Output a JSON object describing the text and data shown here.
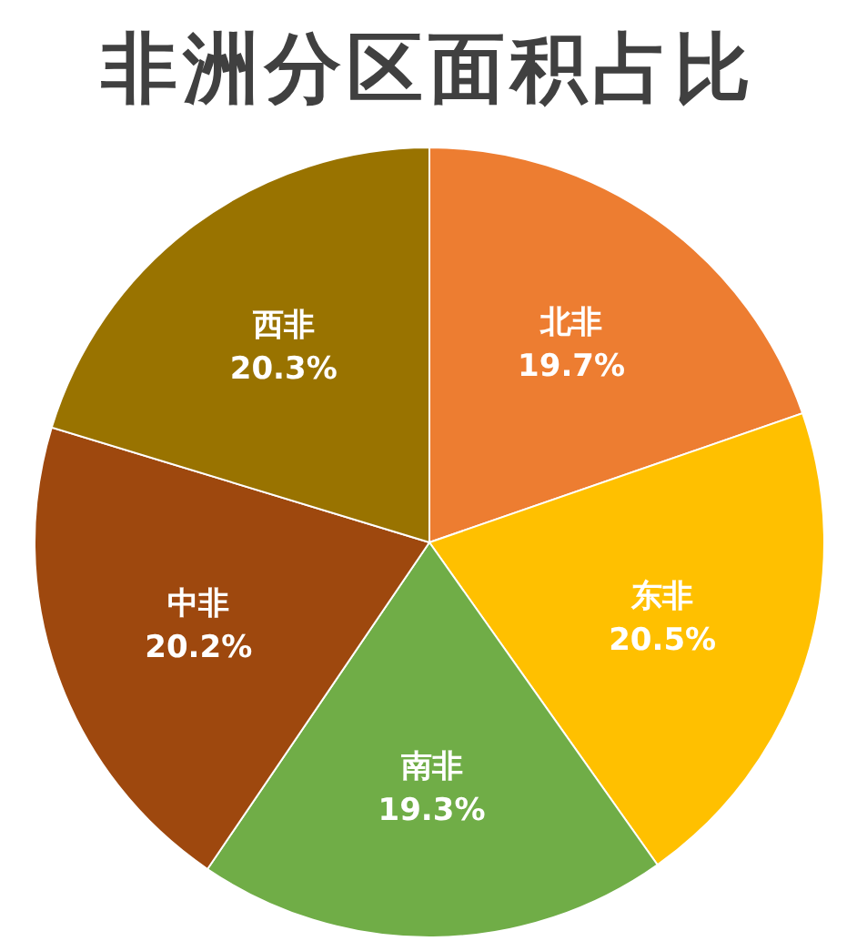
{
  "chart_data": {
    "type": "pie",
    "title": "非洲分区面积占比",
    "categories": [
      "北非",
      "东非",
      "南非",
      "中非",
      "西非"
    ],
    "values": [
      19.7,
      20.5,
      19.3,
      20.2,
      20.3
    ],
    "colors": [
      "#ed7d31",
      "#ffc000",
      "#70ad47",
      "#9e480e",
      "#997300"
    ],
    "value_labels": [
      "19.7%",
      "20.5%",
      "19.3%",
      "20.2%",
      "20.3%"
    ]
  }
}
